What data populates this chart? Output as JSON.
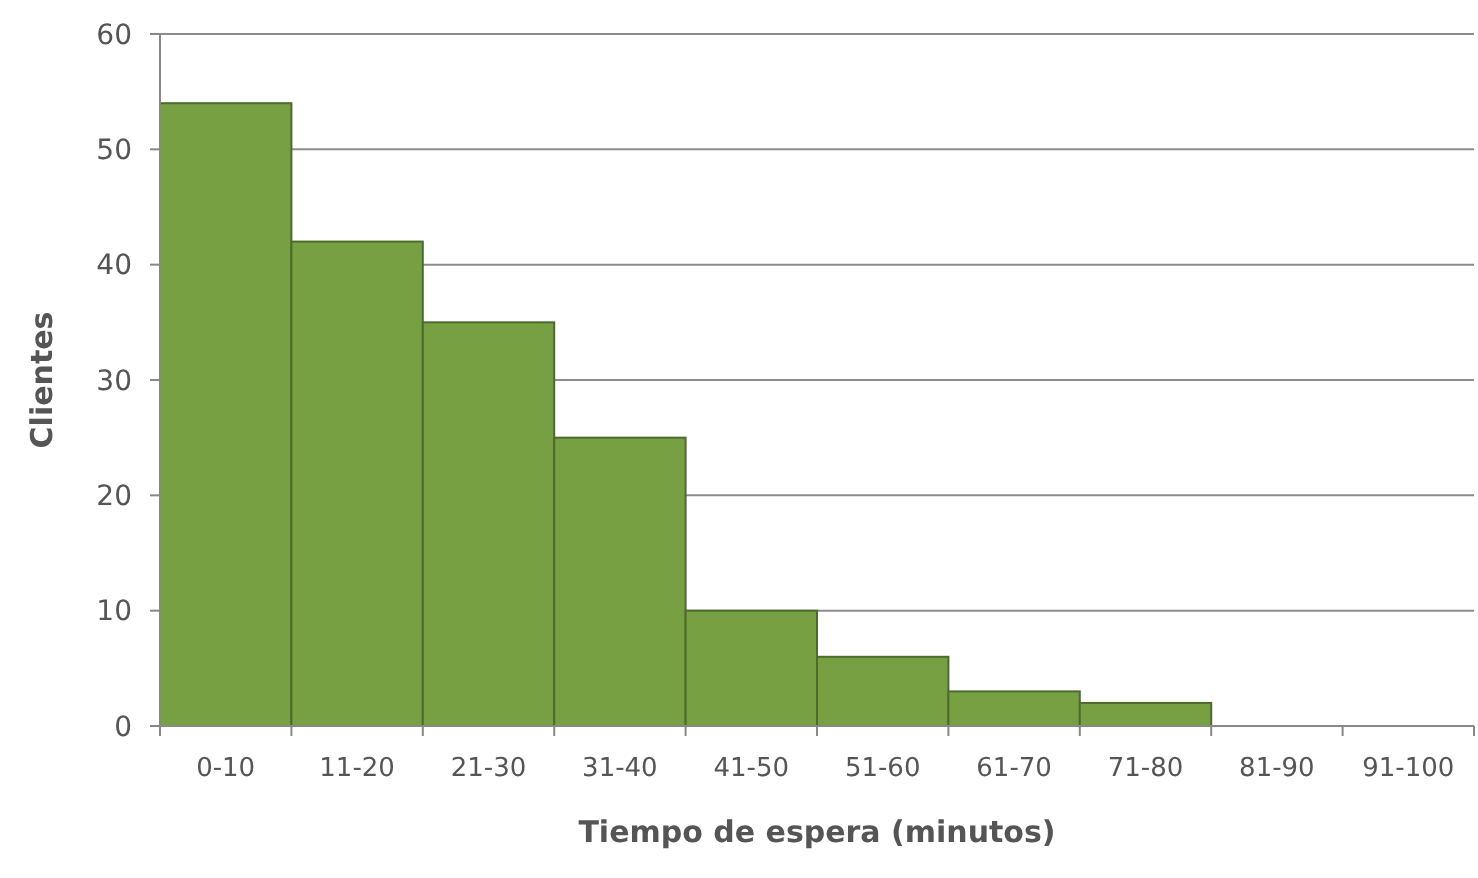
{
  "chart_data": {
    "type": "bar",
    "xlabel": "Tiempo de espera (minutos)",
    "ylabel": "Clientes",
    "categories": [
      "0-10",
      "11-20",
      "21-30",
      "31-40",
      "41-50",
      "51-60",
      "61-70",
      "71-80",
      "81-90",
      "91-100"
    ],
    "values": [
      54,
      42,
      35,
      25,
      10,
      6,
      3,
      2,
      0,
      0
    ],
    "color": "#77a043",
    "ylim": [
      0,
      60
    ],
    "yticks": [
      0,
      10,
      20,
      30,
      40,
      50,
      60
    ],
    "grid": "y"
  }
}
